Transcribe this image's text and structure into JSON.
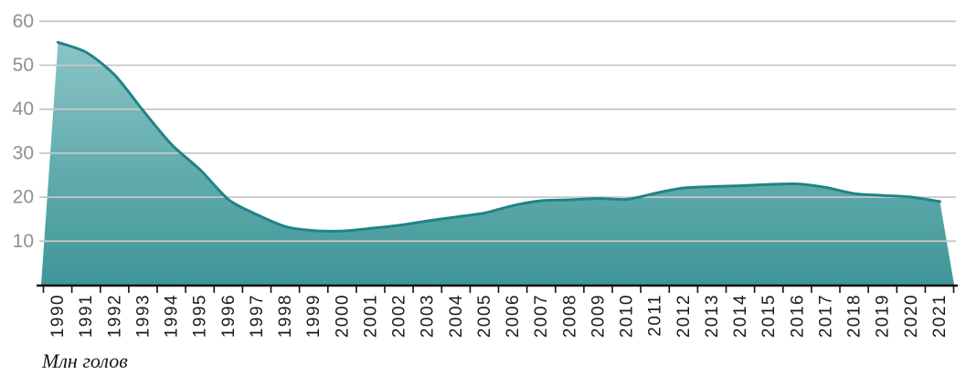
{
  "caption": "Млн голов",
  "colors": {
    "fill_top": "#8ac5c6",
    "fill_bottom": "#3f9698",
    "line": "#1f8486",
    "gridline": "#c7c7c7",
    "axis": "#111111",
    "y_tick_label": "#8f8f8f",
    "x_tick_label": "#1a1a1a"
  },
  "chart_data": {
    "type": "area",
    "title": "",
    "xlabel": "",
    "ylabel": "Млн голов",
    "categories": [
      "1990",
      "1991",
      "1992",
      "1993",
      "1994",
      "1995",
      "1996",
      "1997",
      "1998",
      "1999",
      "2000",
      "2001",
      "2002",
      "2003",
      "2004",
      "2005",
      "2006",
      "2007",
      "2008",
      "2009",
      "2010",
      "2011",
      "2012",
      "2013",
      "2014",
      "2015",
      "2016",
      "2017",
      "2018",
      "2019",
      "2020",
      "2021"
    ],
    "values": [
      55.2,
      52.9,
      47.7,
      39.6,
      31.9,
      26.2,
      19.4,
      16.0,
      13.3,
      12.4,
      12.3,
      12.9,
      13.6,
      14.6,
      15.5,
      16.4,
      18.1,
      19.2,
      19.4,
      19.7,
      19.5,
      20.9,
      22.1,
      22.4,
      22.6,
      22.9,
      23.0,
      22.2,
      20.8,
      20.4,
      20.0,
      19.0
    ],
    "yticks": [
      10,
      20,
      30,
      40,
      50,
      60
    ],
    "ylim": [
      0,
      60
    ],
    "grid": true,
    "legend": "none"
  }
}
